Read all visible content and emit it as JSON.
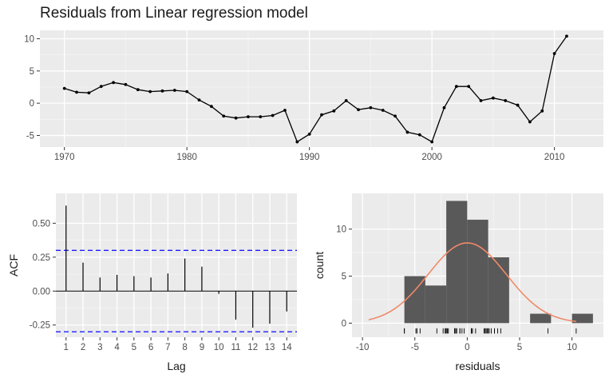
{
  "title": "Residuals from Linear regression model",
  "chart_data": [
    {
      "type": "line",
      "title": "Residuals from Linear regression model",
      "xlabel": "",
      "ylabel": "",
      "xlim": [
        1968,
        2014
      ],
      "ylim": [
        -6.8,
        11.3
      ],
      "x_ticks": [
        1970,
        1980,
        1990,
        2000,
        2010
      ],
      "y_ticks": [
        -5,
        0,
        5,
        10
      ],
      "grid": true,
      "x": [
        1970,
        1971,
        1972,
        1973,
        1974,
        1975,
        1976,
        1977,
        1978,
        1979,
        1980,
        1981,
        1982,
        1983,
        1984,
        1985,
        1986,
        1987,
        1988,
        1989,
        1990,
        1991,
        1992,
        1993,
        1994,
        1995,
        1996,
        1997,
        1998,
        1999,
        2000,
        2001,
        2002,
        2003,
        2004,
        2005,
        2006,
        2007,
        2008,
        2009,
        2010,
        2011
      ],
      "y": [
        2.3,
        1.7,
        1.6,
        2.6,
        3.2,
        2.9,
        2.1,
        1.8,
        1.9,
        2.0,
        1.8,
        0.5,
        -0.5,
        -2.0,
        -2.3,
        -2.1,
        -2.1,
        -1.9,
        -1.1,
        -6.0,
        -4.8,
        -1.8,
        -1.2,
        0.4,
        -1.0,
        -0.7,
        -1.1,
        -2.0,
        -4.5,
        -4.9,
        -6.0,
        -0.7,
        2.6,
        2.6,
        0.4,
        0.8,
        0.4,
        -0.3,
        -2.9,
        -1.2,
        7.7,
        10.4
      ]
    },
    {
      "type": "bar",
      "subtype": "acf",
      "xlabel": "Lag",
      "ylabel": "ACF",
      "categories": [
        1,
        2,
        3,
        4,
        5,
        6,
        7,
        8,
        9,
        10,
        11,
        12,
        13,
        14
      ],
      "values": [
        0.63,
        0.21,
        0.1,
        0.12,
        0.11,
        0.1,
        0.13,
        0.24,
        0.18,
        -0.02,
        -0.21,
        -0.27,
        -0.24,
        -0.15
      ],
      "ylim": [
        -0.34,
        0.72
      ],
      "y_ticks": [
        -0.25,
        0,
        0.25,
        0.5
      ],
      "y_tick_labels": [
        "-0.25",
        "0.00",
        "0.25",
        "0.50"
      ],
      "confidence_limits": [
        0.3,
        -0.3
      ],
      "limit_color": "#1e1eff",
      "grid": true
    },
    {
      "type": "histogram",
      "xlabel": "residuals",
      "ylabel": "count",
      "bins": [
        {
          "from": -6,
          "to": -4,
          "count": 5
        },
        {
          "from": -4,
          "to": -2,
          "count": 4
        },
        {
          "from": -2,
          "to": 0,
          "count": 13
        },
        {
          "from": 0,
          "to": 2,
          "count": 11
        },
        {
          "from": 2,
          "to": 4,
          "count": 7
        },
        {
          "from": 4,
          "to": 6,
          "count": 0
        },
        {
          "from": 6,
          "to": 8,
          "count": 1
        },
        {
          "from": 8,
          "to": 10,
          "count": 0
        },
        {
          "from": 10,
          "to": 12,
          "count": 1
        }
      ],
      "rug": [
        -6.0,
        -6.0,
        -4.9,
        -4.8,
        -4.5,
        -2.9,
        -2.3,
        -2.1,
        -2.1,
        -2.0,
        -2.0,
        -1.9,
        -1.8,
        -1.2,
        -1.2,
        -1.1,
        -1.1,
        -1.0,
        -0.7,
        -0.7,
        -0.5,
        -0.3,
        0.4,
        0.4,
        0.4,
        0.5,
        0.8,
        1.6,
        1.7,
        1.8,
        1.8,
        1.9,
        2.0,
        2.1,
        2.3,
        2.6,
        2.6,
        2.6,
        2.9,
        3.2,
        7.7,
        10.4
      ],
      "density": {
        "mean": 0,
        "sd": 3.74,
        "scale": 80,
        "from": -9.4,
        "to": 10.4,
        "color": "#f08a68"
      },
      "bar_color": "#595959",
      "xlim": [
        -11,
        13
      ],
      "ylim": [
        -1.5,
        13.8
      ],
      "x_ticks": [
        -10,
        -5,
        0,
        5,
        10
      ],
      "y_ticks": [
        0,
        5,
        10
      ],
      "grid": true
    }
  ]
}
